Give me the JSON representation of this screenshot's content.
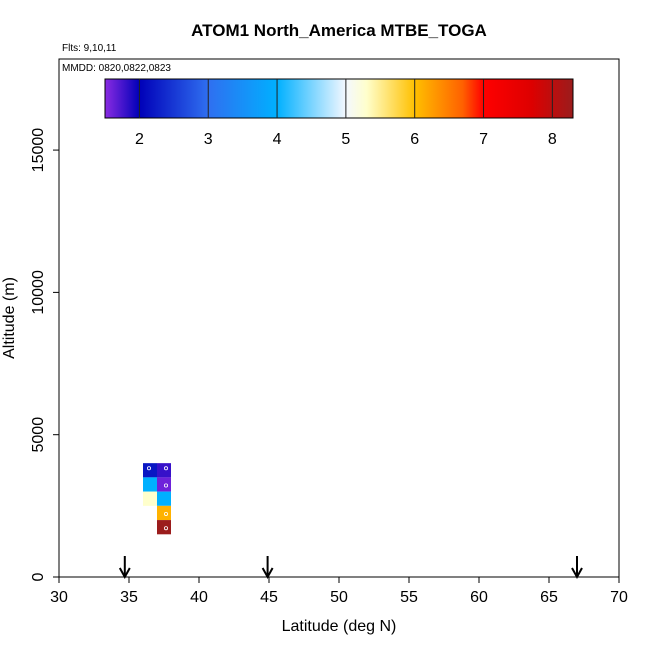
{
  "chart_data": {
    "type": "heatmap",
    "title": "ATOM1 North_America MTBE_TOGA",
    "annotations": [
      "Flts: 9,10,11",
      "MMDD: 0820,0822,0823"
    ],
    "xlabel": "Latitude (deg N)",
    "ylabel": "Altitude (m)",
    "xlim": [
      30,
      70
    ],
    "ylim": [
      0,
      18200
    ],
    "x_ticks": [
      "30",
      "35",
      "40",
      "45",
      "50",
      "55",
      "60",
      "65",
      "70"
    ],
    "y_ticks": [
      "0",
      "5000",
      "10000",
      "15000"
    ],
    "grid": false,
    "colorbar": {
      "range": [
        1.5,
        8.3
      ],
      "ticks": [
        "2",
        "3",
        "4",
        "5",
        "6",
        "7",
        "8"
      ],
      "stops": [
        {
          "v": 1.5,
          "color": "#8a2be2"
        },
        {
          "v": 2.0,
          "color": "#0000b8"
        },
        {
          "v": 3.0,
          "color": "#2f6ff0"
        },
        {
          "v": 4.0,
          "color": "#00b0ff"
        },
        {
          "v": 5.0,
          "color": "#f4f8ff"
        },
        {
          "v": 5.3,
          "color": "#ffffcc"
        },
        {
          "v": 6.0,
          "color": "#ffc000"
        },
        {
          "v": 6.7,
          "color": "#ff6000"
        },
        {
          "v": 7.0,
          "color": "#ff0000"
        },
        {
          "v": 7.7,
          "color": "#dd0000"
        },
        {
          "v": 8.3,
          "color": "#9b1c1c"
        }
      ]
    },
    "cell_size": {
      "lat": 1.0,
      "alt": 500
    },
    "cells": [
      {
        "lat": 36.5,
        "alt": 3750,
        "value": 2.2,
        "marker": true
      },
      {
        "lat": 37.5,
        "alt": 3750,
        "value": 1.8,
        "marker": true
      },
      {
        "lat": 36.5,
        "alt": 3250,
        "value": 4.0,
        "marker": false
      },
      {
        "lat": 37.5,
        "alt": 3250,
        "value": 1.6,
        "marker": true
      },
      {
        "lat": 36.5,
        "alt": 2750,
        "value": 5.3,
        "marker": false
      },
      {
        "lat": 37.5,
        "alt": 2750,
        "value": 4.0,
        "marker": false
      },
      {
        "lat": 37.5,
        "alt": 2250,
        "value": 6.1,
        "marker": true
      },
      {
        "lat": 37.5,
        "alt": 1750,
        "value": 8.3,
        "marker": true
      }
    ],
    "arrows_lat": [
      34.7,
      44.9,
      67.0
    ]
  }
}
